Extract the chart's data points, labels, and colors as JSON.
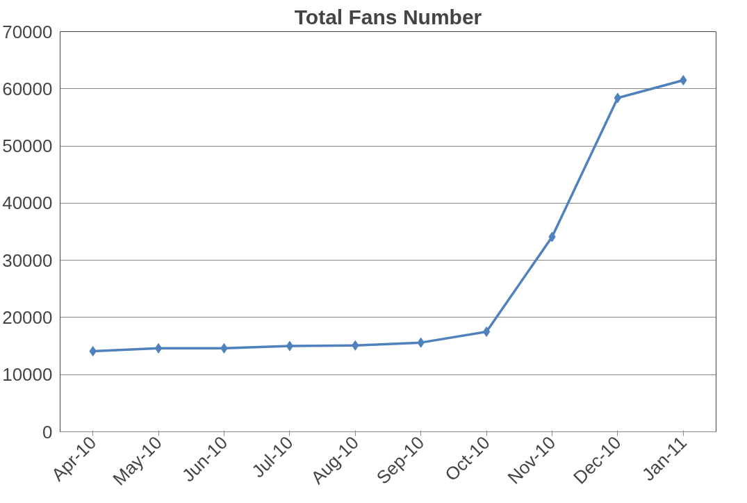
{
  "chart_data": {
    "type": "line",
    "title": "Total Fans Number",
    "categories": [
      "Apr-10",
      "May-10",
      "Jun-10",
      "Jul-10",
      "Aug-10",
      "Sep-10",
      "Oct-10",
      "Nov-10",
      "Dec-10",
      "Jan-11"
    ],
    "series": [
      {
        "color": "#4f81bd",
        "values": [
          14100,
          14600,
          14600,
          15000,
          15100,
          15600,
          17500,
          34100,
          58400,
          61500
        ]
      }
    ],
    "ylim": [
      0,
      70000
    ],
    "yticks": [
      0,
      10000,
      20000,
      30000,
      40000,
      50000,
      60000,
      70000
    ],
    "grid": "y",
    "marker": "diamond",
    "line_style": "solid"
  }
}
